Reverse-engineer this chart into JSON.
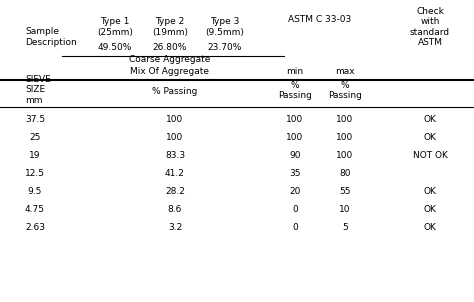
{
  "title": "",
  "fig_bg": "#ffffff",
  "col_headers_row1": [
    "Type 1\n(25mm)\n49.50%",
    "Type 2\n(19mm)\n26.80%",
    "Type 3\n(9.5mm)\n23.70%",
    "ASTM C 33-03",
    "",
    "Check\nwith\nstandard\nASTM"
  ],
  "col_headers_row2": [
    "Coarse Aggregate",
    "Mix Of Aggregate",
    "min",
    "max",
    ""
  ],
  "sieve_header": "SIEVE\nSIZE\nmm",
  "passing_header": "% Passing",
  "percent_passing_col": [
    "% \nPassing",
    "% \nPassing"
  ],
  "rows": [
    [
      "37.5",
      "100",
      "100",
      "100",
      "OK"
    ],
    [
      "25",
      "100",
      "100",
      "100",
      "OK"
    ],
    [
      "19",
      "83.3",
      "90",
      "100",
      "NOT OK"
    ],
    [
      "12.5",
      "41.2",
      "35",
      "80",
      ""
    ],
    [
      "9.5",
      "28.2",
      "20",
      "55",
      "OK"
    ],
    [
      "4.75",
      "8.6",
      "0",
      "10",
      "OK"
    ],
    [
      "2.63",
      "3.2",
      "0",
      "5",
      "OK"
    ]
  ]
}
